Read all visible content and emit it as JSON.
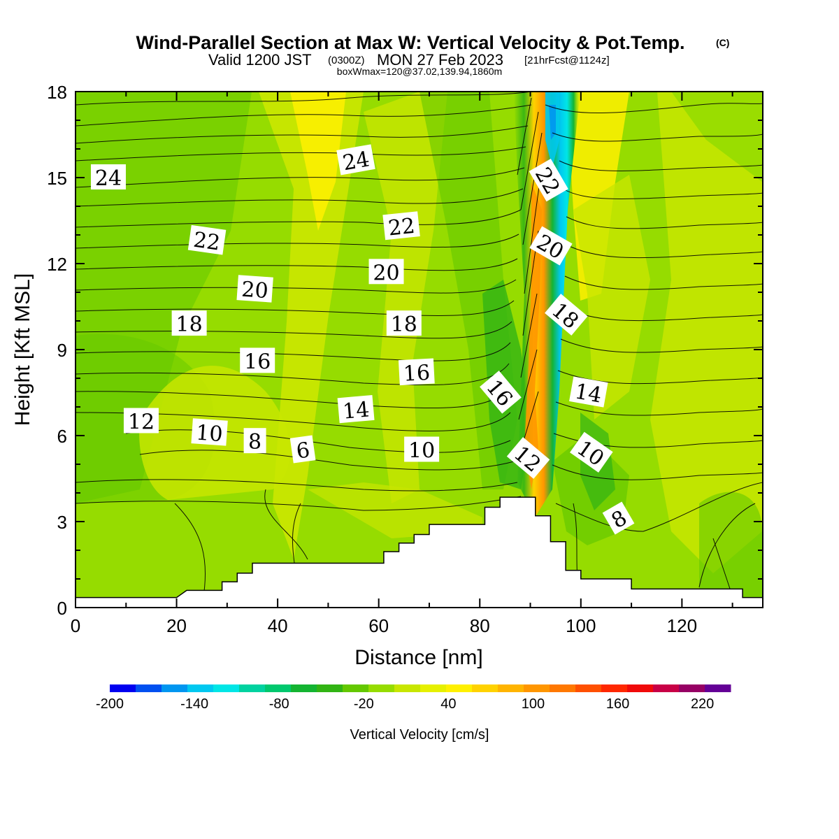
{
  "header": {
    "title": "Wind-Parallel Section at Max W: Vertical Velocity & Pot.Temp.",
    "copyright": "(C)",
    "valid_a": "Valid 1200 JST",
    "valid_b": "(0300Z)",
    "valid_c": "MON 27 Feb 2023",
    "valid_d": "[21hrFcst@1124z]",
    "box_info": "boxWmax=120@37.02,139.94,1860m"
  },
  "chart_data": {
    "type": "heatmap",
    "xlabel": "Distance [nm]",
    "ylabel": "Height [Kft MSL]",
    "xlim": [
      0,
      136
    ],
    "ylim": [
      0,
      18
    ],
    "x_ticks": [
      "0",
      "20",
      "40",
      "60",
      "80",
      "100",
      "120"
    ],
    "y_ticks": [
      "0",
      "3",
      "6",
      "9",
      "12",
      "15",
      "18"
    ],
    "colorbar": {
      "label": "Vertical Velocity [cm/s]",
      "min": -200,
      "max": 240,
      "step": 20,
      "tick_labels": [
        "-200",
        "-140",
        "-80",
        "-20",
        "40",
        "100",
        "160",
        "220"
      ],
      "colors": [
        "#0000f0",
        "#0050f0",
        "#0096f0",
        "#00c8f0",
        "#00e6e6",
        "#00d2a0",
        "#00c86e",
        "#14b432",
        "#32b414",
        "#64c800",
        "#96dc00",
        "#c8e600",
        "#e6f000",
        "#fff000",
        "#ffd200",
        "#ffb400",
        "#ff9600",
        "#ff7800",
        "#ff5000",
        "#ff2800",
        "#f00a0a",
        "#c80046",
        "#960064",
        "#640096"
      ]
    },
    "terrain_kft": [
      [
        0,
        0.35
      ],
      [
        20,
        0.35
      ],
      [
        22,
        0.6
      ],
      [
        29,
        0.6
      ],
      [
        29,
        0.9
      ],
      [
        32,
        0.9
      ],
      [
        32,
        1.2
      ],
      [
        35,
        1.2
      ],
      [
        35,
        1.55
      ],
      [
        61,
        1.55
      ],
      [
        61,
        1.95
      ],
      [
        64,
        1.95
      ],
      [
        64,
        2.25
      ],
      [
        67,
        2.25
      ],
      [
        67,
        2.55
      ],
      [
        70,
        2.55
      ],
      [
        70,
        2.9
      ],
      [
        81,
        2.9
      ],
      [
        81,
        3.5
      ],
      [
        84,
        3.5
      ],
      [
        84,
        3.85
      ],
      [
        91,
        3.85
      ],
      [
        91,
        3.2
      ],
      [
        94,
        3.2
      ],
      [
        94,
        2.3
      ],
      [
        97,
        2.3
      ],
      [
        97,
        1.3
      ],
      [
        100,
        1.3
      ],
      [
        100,
        1.0
      ],
      [
        110,
        1.0
      ],
      [
        110,
        0.65
      ],
      [
        132,
        0.65
      ],
      [
        132,
        0.35
      ],
      [
        136,
        0.35
      ]
    ],
    "theta_labels": [
      {
        "text": "24",
        "x": 6.5,
        "y": 15.0,
        "rot": 0
      },
      {
        "text": "24",
        "x": 55.5,
        "y": 15.6,
        "rot": -10
      },
      {
        "text": "22",
        "x": 26.0,
        "y": 12.8,
        "rot": 8
      },
      {
        "text": "22",
        "x": 64.5,
        "y": 13.3,
        "rot": -6
      },
      {
        "text": "22",
        "x": 93.5,
        "y": 14.9,
        "rot": 60
      },
      {
        "text": "20",
        "x": 35.5,
        "y": 11.1,
        "rot": 4
      },
      {
        "text": "20",
        "x": 61.5,
        "y": 11.7,
        "rot": 0
      },
      {
        "text": "20",
        "x": 94.0,
        "y": 12.6,
        "rot": 30
      },
      {
        "text": "18",
        "x": 22.5,
        "y": 9.9,
        "rot": 0
      },
      {
        "text": "18",
        "x": 65.0,
        "y": 9.9,
        "rot": 0
      },
      {
        "text": "18",
        "x": 97.0,
        "y": 10.2,
        "rot": 40
      },
      {
        "text": "16",
        "x": 36.0,
        "y": 8.6,
        "rot": 0
      },
      {
        "text": "16",
        "x": 67.5,
        "y": 8.2,
        "rot": -3
      },
      {
        "text": "16",
        "x": 84.0,
        "y": 7.5,
        "rot": 50
      },
      {
        "text": "14",
        "x": 55.5,
        "y": 6.9,
        "rot": -5
      },
      {
        "text": "14",
        "x": 101.5,
        "y": 7.5,
        "rot": 10
      },
      {
        "text": "12",
        "x": 13.0,
        "y": 6.5,
        "rot": 0
      },
      {
        "text": "12",
        "x": 89.5,
        "y": 5.2,
        "rot": 40
      },
      {
        "text": "10",
        "x": 26.5,
        "y": 6.1,
        "rot": 4
      },
      {
        "text": "10",
        "x": 68.5,
        "y": 5.5,
        "rot": 0
      },
      {
        "text": "10",
        "x": 102.0,
        "y": 5.4,
        "rot": 35
      },
      {
        "text": "8",
        "x": 35.5,
        "y": 5.8,
        "rot": 0
      },
      {
        "text": "8",
        "x": 107.5,
        "y": 3.1,
        "rot": -30
      },
      {
        "text": "6",
        "x": 45.0,
        "y": 5.5,
        "rot": -8
      }
    ]
  }
}
